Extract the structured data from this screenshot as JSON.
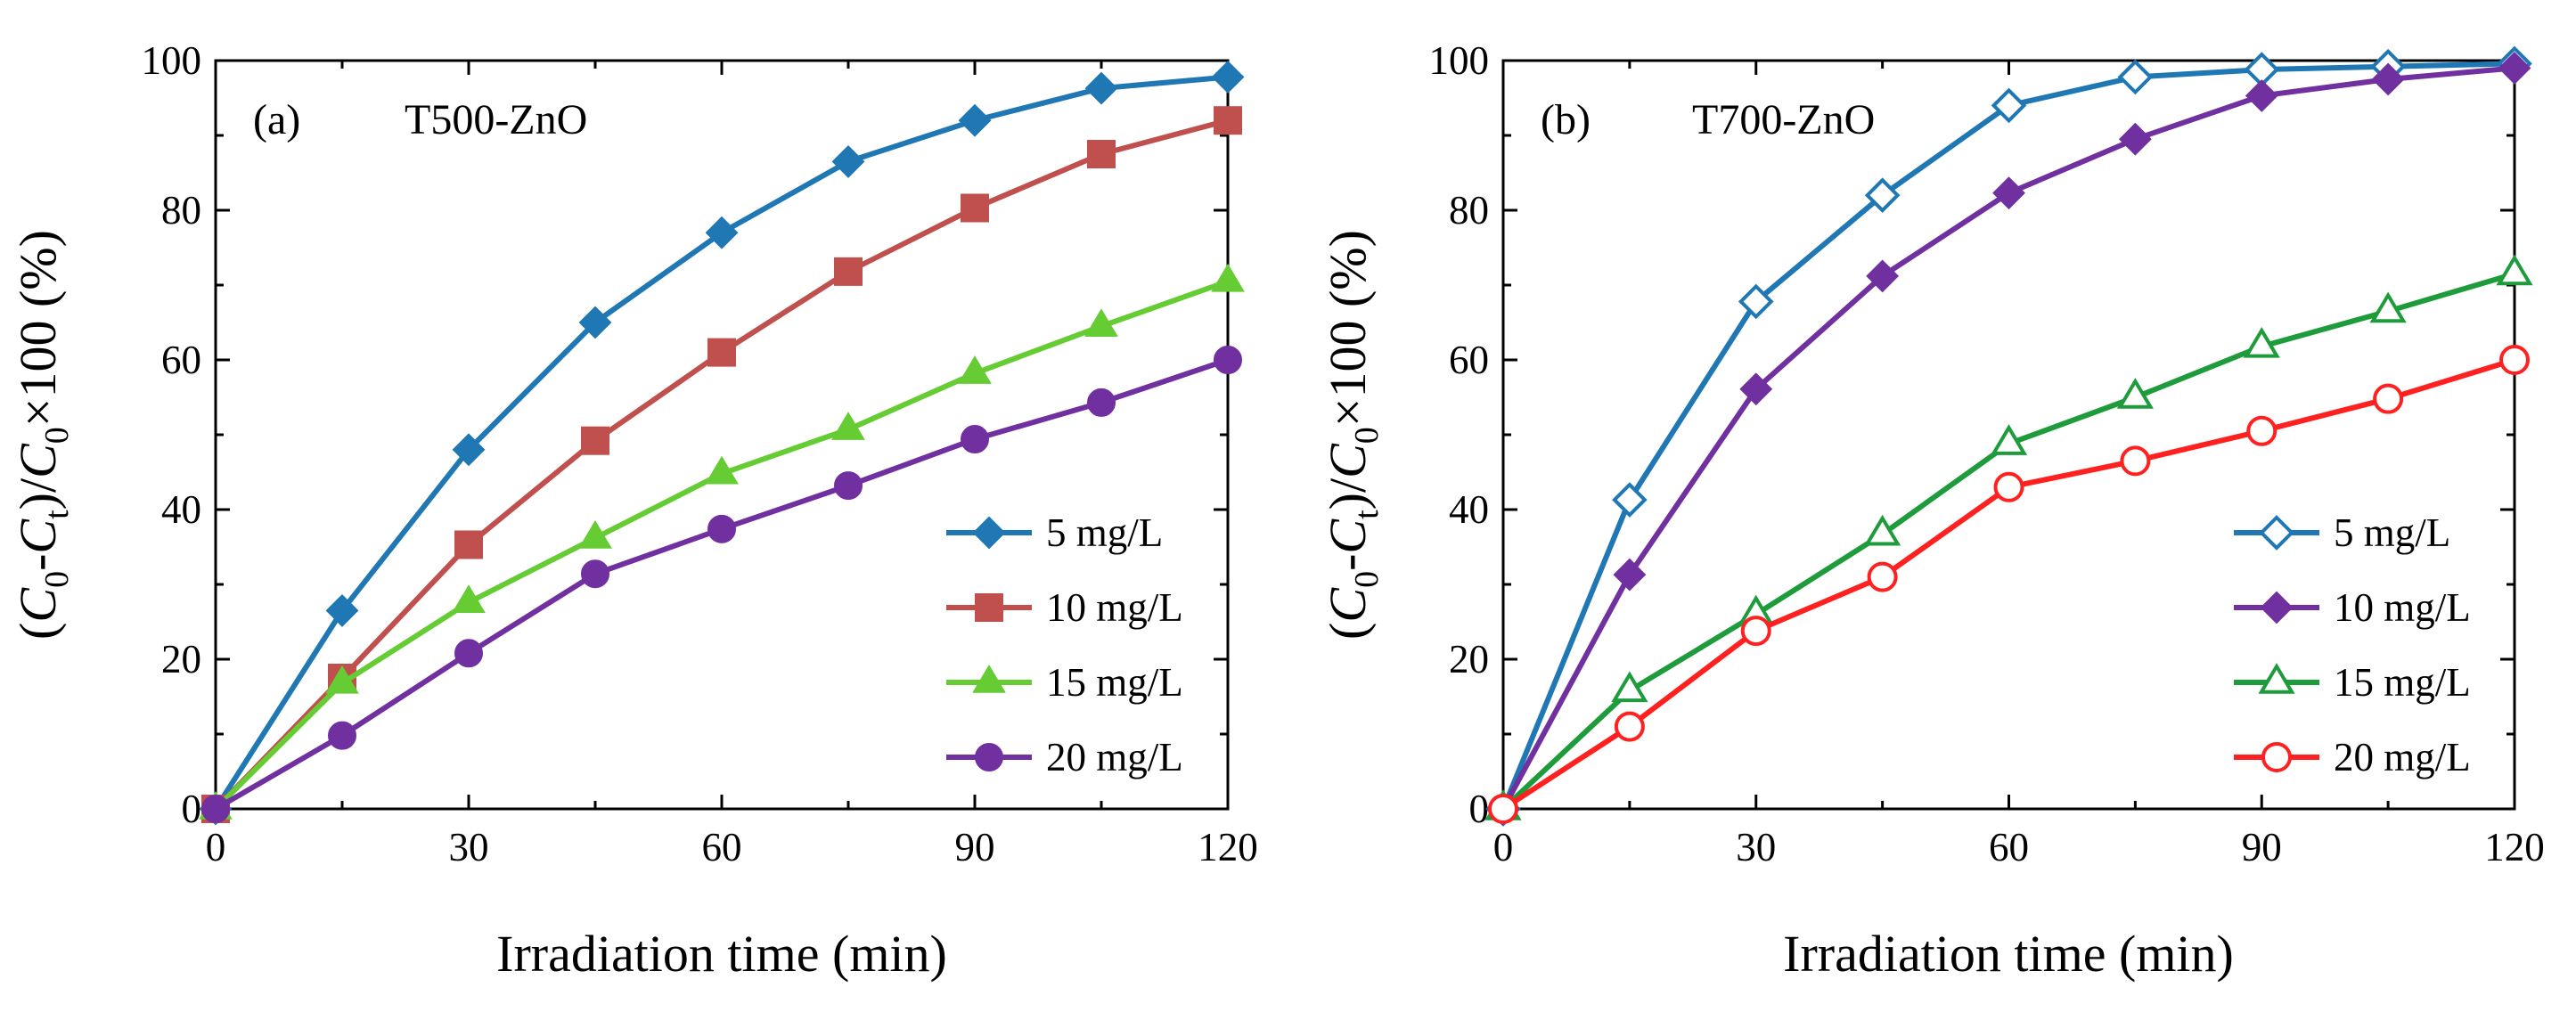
{
  "figure": {
    "x_axis_title": "Irradiation time (min)",
    "y_axis_title": {
      "open": "(",
      "c": "C",
      "sub0": "0",
      "minus": "-",
      "sub_t": "t",
      "mid": ")/",
      "tail": "×100 (%)"
    }
  },
  "chart_data": [
    {
      "type": "line",
      "panel": "(a)",
      "title": "T500-ZnO",
      "x": [
        0,
        15,
        30,
        45,
        60,
        75,
        90,
        105,
        120
      ],
      "xlim": [
        0,
        120
      ],
      "ylim": [
        0,
        100
      ],
      "xticks": [
        0,
        30,
        60,
        90,
        120
      ],
      "yticks": [
        0,
        20,
        40,
        60,
        80,
        100
      ],
      "xlabel": "Irradiation time (min)",
      "ylabel": "(C0-Ct)/C0×100 (%)",
      "legend_position": "lower-right",
      "series": [
        {
          "name": "5 mg/L",
          "color": "#1f77b4",
          "marker": "diamond",
          "filled": true,
          "values": [
            0,
            26.5,
            48,
            65,
            77,
            86.5,
            92,
            96.3,
            97.8
          ]
        },
        {
          "name": "10 mg/L",
          "color": "#c0504d",
          "marker": "square",
          "filled": true,
          "values": [
            0,
            17.5,
            35.3,
            49.2,
            61,
            71.8,
            80.3,
            87.5,
            92
          ]
        },
        {
          "name": "15 mg/L",
          "color": "#66cc33",
          "marker": "triangle",
          "filled": true,
          "values": [
            0,
            16.8,
            27.6,
            36.2,
            44.8,
            50.7,
            58.2,
            64.5,
            70.5
          ]
        },
        {
          "name": "20 mg/L",
          "color": "#7030a0",
          "marker": "circle",
          "filled": true,
          "values": [
            0,
            9.8,
            20.8,
            31.4,
            37.4,
            43.2,
            49.4,
            54.3,
            60
          ]
        }
      ]
    },
    {
      "type": "line",
      "panel": "(b)",
      "title": "T700-ZnO",
      "x": [
        0,
        15,
        30,
        45,
        60,
        75,
        90,
        105,
        120
      ],
      "xlim": [
        0,
        120
      ],
      "ylim": [
        0,
        100
      ],
      "xticks": [
        0,
        30,
        60,
        90,
        120
      ],
      "yticks": [
        0,
        20,
        40,
        60,
        80,
        100
      ],
      "xlabel": "Irradiation time (min)",
      "ylabel": "(C0-Ct)/C0×100 (%)",
      "legend_position": "lower-right",
      "series": [
        {
          "name": "5 mg/L",
          "color": "#1f77b4",
          "marker": "diamond",
          "filled": false,
          "values": [
            0,
            41.3,
            67.8,
            82,
            94,
            97.8,
            98.8,
            99.2,
            99.6
          ]
        },
        {
          "name": "10 mg/L",
          "color": "#7030a0",
          "marker": "diamond",
          "filled": true,
          "values": [
            0,
            31.3,
            56.1,
            71.2,
            82.3,
            89.5,
            95.3,
            97.5,
            99
          ]
        },
        {
          "name": "15 mg/L",
          "color": "#1e9c3c",
          "marker": "triangle",
          "filled": false,
          "values": [
            0,
            15.8,
            26,
            36.7,
            48.8,
            55,
            61.8,
            66.5,
            71.5
          ]
        },
        {
          "name": "20 mg/L",
          "color": "#ff2020",
          "marker": "circle",
          "filled": false,
          "values": [
            0,
            11,
            23.8,
            31,
            43,
            46.5,
            50.5,
            54.8,
            60
          ]
        }
      ]
    }
  ]
}
